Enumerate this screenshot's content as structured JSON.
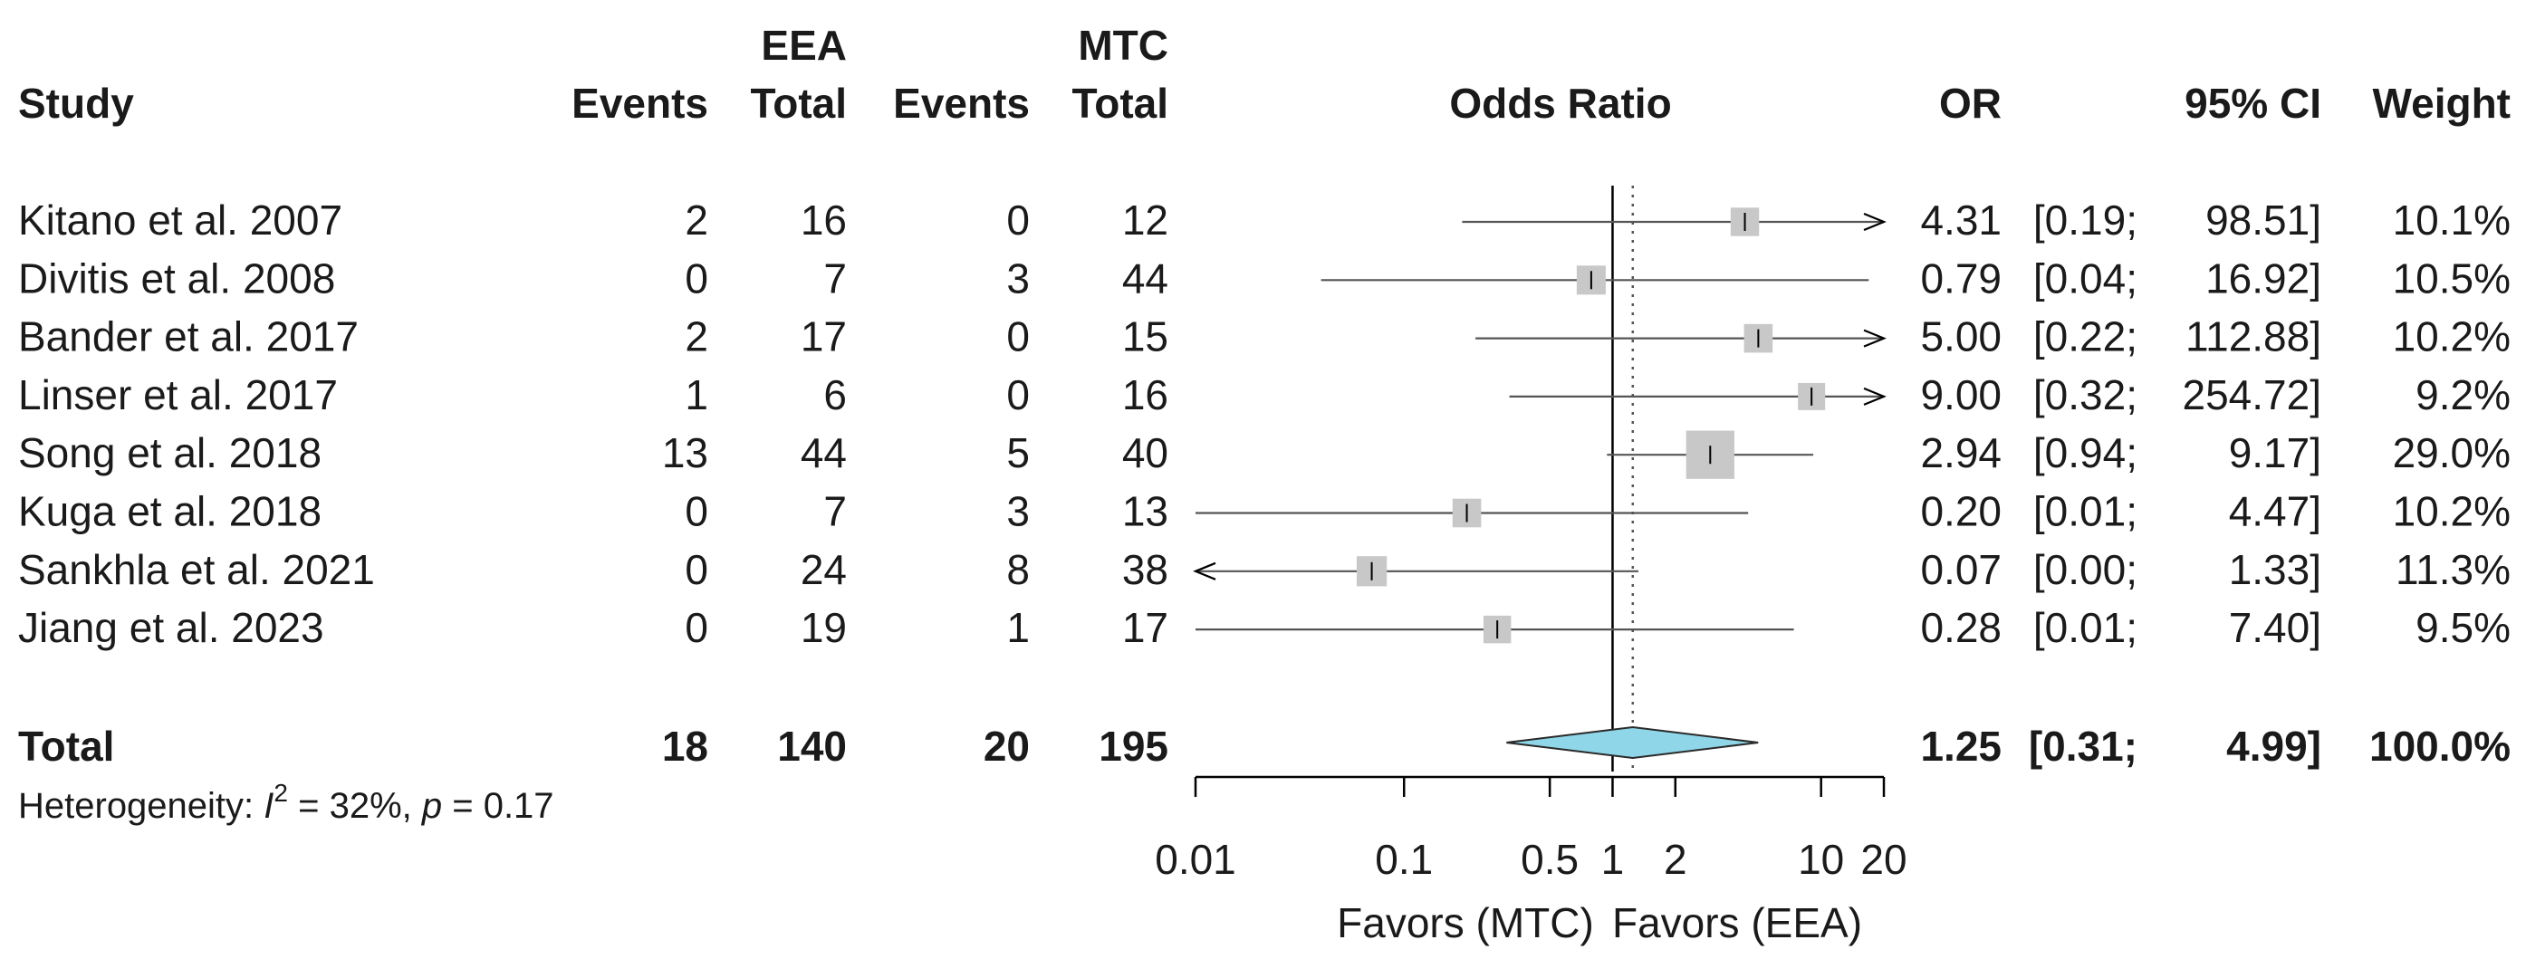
{
  "headers": {
    "study": "Study",
    "group1": "EEA",
    "group2": "MTC",
    "events": "Events",
    "total": "Total",
    "plot_title": "Odds Ratio",
    "or": "OR",
    "ci": "95% CI",
    "weight": "Weight"
  },
  "studies": [
    {
      "name": "Kitano et al. 2007",
      "e1": "2",
      "n1": "16",
      "e2": "0",
      "n2": "12",
      "or_text": "4.31",
      "ci_low_text": "[0.19;",
      "ci_high_text": "98.51]",
      "weight_text": "10.1%"
    },
    {
      "name": "Divitis et al. 2008",
      "e1": "0",
      "n1": "7",
      "e2": "3",
      "n2": "44",
      "or_text": "0.79",
      "ci_low_text": "[0.04;",
      "ci_high_text": "16.92]",
      "weight_text": "10.5%"
    },
    {
      "name": "Bander et al. 2017",
      "e1": "2",
      "n1": "17",
      "e2": "0",
      "n2": "15",
      "or_text": "5.00",
      "ci_low_text": "[0.22;",
      "ci_high_text": "112.88]",
      "weight_text": "10.2%"
    },
    {
      "name": "Linser et al. 2017",
      "e1": "1",
      "n1": "6",
      "e2": "0",
      "n2": "16",
      "or_text": "9.00",
      "ci_low_text": "[0.32;",
      "ci_high_text": "254.72]",
      "weight_text": "9.2%"
    },
    {
      "name": "Song et al. 2018",
      "e1": "13",
      "n1": "44",
      "e2": "5",
      "n2": "40",
      "or_text": "2.94",
      "ci_low_text": "[0.94;",
      "ci_high_text": "9.17]",
      "weight_text": "29.0%"
    },
    {
      "name": "Kuga et al. 2018",
      "e1": "0",
      "n1": "7",
      "e2": "3",
      "n2": "13",
      "or_text": "0.20",
      "ci_low_text": "[0.01;",
      "ci_high_text": "4.47]",
      "weight_text": "10.2%"
    },
    {
      "name": "Sankhla et al. 2021",
      "e1": "0",
      "n1": "24",
      "e2": "8",
      "n2": "38",
      "or_text": "0.07",
      "ci_low_text": "[0.00;",
      "ci_high_text": "1.33]",
      "weight_text": "11.3%"
    },
    {
      "name": "Jiang et al. 2023",
      "e1": "0",
      "n1": "19",
      "e2": "1",
      "n2": "17",
      "or_text": "0.28",
      "ci_low_text": "[0.01;",
      "ci_high_text": "7.40]",
      "weight_text": "9.5%"
    }
  ],
  "total": {
    "label": "Total",
    "e1": "18",
    "n1": "140",
    "e2": "20",
    "n2": "195",
    "or_text": "1.25",
    "ci_low_text": "[0.31;",
    "ci_high_text": "4.99]",
    "weight_text": "100.0%"
  },
  "heterogeneity": {
    "prefix": "Heterogeneity: ",
    "i_symbol": "I",
    "i_exponent": "2",
    "i_value": " = 32%, ",
    "p_symbol": "p",
    "p_value": " = 0.17"
  },
  "axis": {
    "ticks": [
      {
        "value": 0.01,
        "label": "0.01"
      },
      {
        "value": 0.1,
        "label": "0.1"
      },
      {
        "value": 0.5,
        "label": "0.5"
      },
      {
        "value": 1,
        "label": "1"
      },
      {
        "value": 2,
        "label": "2"
      },
      {
        "value": 10,
        "label": "10"
      },
      {
        "value": 20,
        "label": "20"
      }
    ],
    "left_label": "Favors (MTC)",
    "right_label": "Favors (EEA)"
  },
  "colors": {
    "text": "#1a1a1a",
    "box": "#c8c8c8",
    "line": "#555555",
    "diamond": "#8fd6e8",
    "diamond_stroke": "#2a2a2a"
  },
  "chart_data": {
    "type": "forest",
    "title": "Odds Ratio",
    "scale": "log",
    "xlim": [
      0.01,
      20
    ],
    "null_value": 1,
    "pooled_reference_line": 1.25,
    "series": [
      {
        "name": "Kitano et al. 2007",
        "or": 4.31,
        "ci": [
          0.19,
          98.51
        ],
        "weight": 10.1
      },
      {
        "name": "Divitis et al. 2008",
        "or": 0.79,
        "ci": [
          0.04,
          16.92
        ],
        "weight": 10.5
      },
      {
        "name": "Bander et al. 2017",
        "or": 5.0,
        "ci": [
          0.22,
          112.88
        ],
        "weight": 10.2
      },
      {
        "name": "Linser et al. 2017",
        "or": 9.0,
        "ci": [
          0.32,
          254.72
        ],
        "weight": 9.2
      },
      {
        "name": "Song et al. 2018",
        "or": 2.94,
        "ci": [
          0.94,
          9.17
        ],
        "weight": 29.0
      },
      {
        "name": "Kuga et al. 2018",
        "or": 0.2,
        "ci": [
          0.01,
          4.47
        ],
        "weight": 10.2
      },
      {
        "name": "Sankhla et al. 2021",
        "or": 0.07,
        "ci": [
          0.0,
          1.33
        ],
        "weight": 11.3
      },
      {
        "name": "Jiang et al. 2023",
        "or": 0.28,
        "ci": [
          0.01,
          7.4
        ],
        "weight": 9.5
      }
    ],
    "pooled": {
      "or": 1.25,
      "ci": [
        0.31,
        4.99
      ],
      "weight": 100.0
    }
  }
}
